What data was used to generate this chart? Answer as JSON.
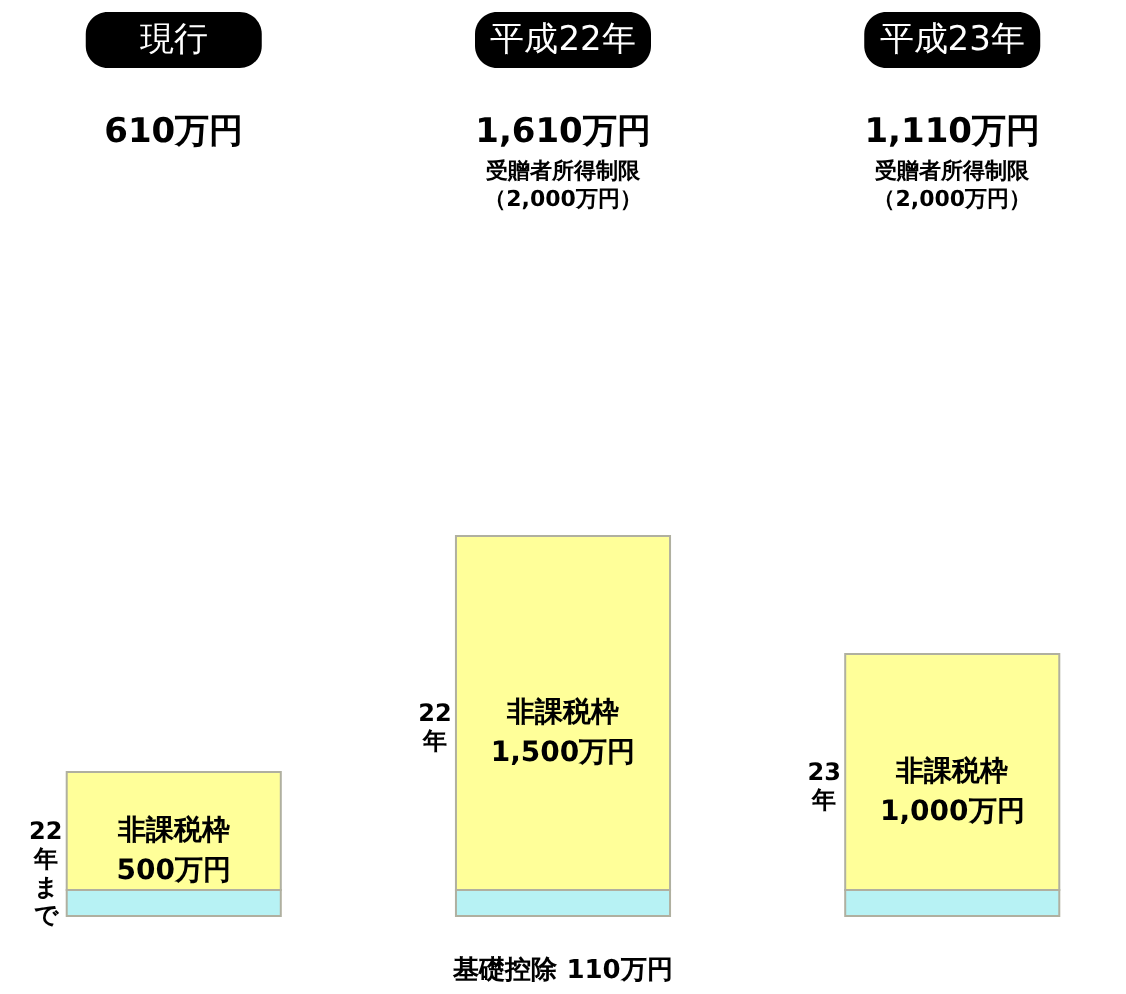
{
  "chart_data": {
    "type": "bar",
    "stacked": true,
    "categories": [
      "現行",
      "平成22年",
      "平成23年"
    ],
    "series": [
      {
        "color": "#b7f2f4",
        "values": [
          110,
          110,
          110
        ]
      },
      {
        "name": "非課税枠",
        "color": "#ffff99",
        "values": [
          500,
          1500,
          1000
        ],
        "value_labels": [
          "500万円",
          "1,500万円",
          "1,000万円"
        ]
      }
    ],
    "annotations": [
      "基礎控除 110万円",
      "610万円",
      "1,610万円",
      "1,110万円",
      "受贈者所得制限",
      "（2,000万円）",
      "受贈者所得制限",
      "（2,000万円）",
      "22年まで",
      "22年",
      "23年"
    ]
  }
}
